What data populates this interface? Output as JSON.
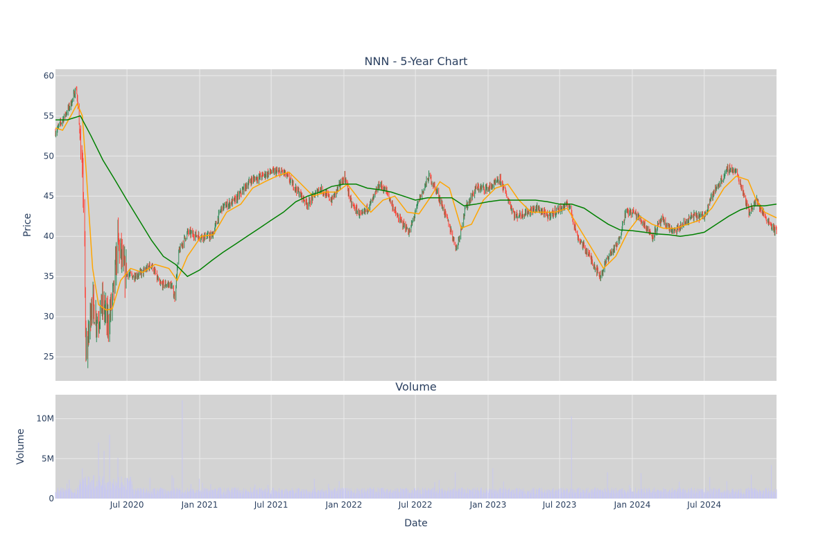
{
  "colors": {
    "plot_bg": "#d3d3d3",
    "grid": "#ebebeb",
    "increasing": "#2e8b57",
    "decreasing": "#ff4136",
    "ma_short": "#ffa500",
    "ma_long": "#008000",
    "volume": "#c8c8f0",
    "text": "#2a3f5f"
  },
  "chart_data": [
    {
      "type": "candlestick",
      "title": "NNN - 5-Year Chart",
      "xlabel": "",
      "ylabel": "Price",
      "xlim": [
        "2020-01-02",
        "2024-12-31"
      ],
      "ylim": [
        22,
        60.8
      ],
      "yticks": [
        25,
        30,
        35,
        40,
        45,
        50,
        55,
        60
      ],
      "grid": true,
      "close_path": [
        [
          "2020-01-02",
          53.0
        ],
        [
          "2020-01-20",
          54.5
        ],
        [
          "2020-02-10",
          56.5
        ],
        [
          "2020-02-24",
          58.5
        ],
        [
          "2020-03-05",
          52.0
        ],
        [
          "2020-03-12",
          46.0
        ],
        [
          "2020-03-16",
          38.0
        ],
        [
          "2020-03-18",
          27.0
        ],
        [
          "2020-03-23",
          26.0
        ],
        [
          "2020-04-02",
          32.0
        ],
        [
          "2020-04-16",
          29.5
        ],
        [
          "2020-05-01",
          31.5
        ],
        [
          "2020-05-14",
          29.0
        ],
        [
          "2020-05-28",
          33.0
        ],
        [
          "2020-06-08",
          39.5
        ],
        [
          "2020-06-25",
          35.5
        ],
        [
          "2020-07-15",
          35.0
        ],
        [
          "2020-08-10",
          35.5
        ],
        [
          "2020-09-01",
          36.5
        ],
        [
          "2020-09-22",
          34.0
        ],
        [
          "2020-10-20",
          34.0
        ],
        [
          "2020-10-30",
          32.5
        ],
        [
          "2020-11-09",
          38.0
        ],
        [
          "2020-12-01",
          40.5
        ],
        [
          "2021-01-01",
          40.0
        ],
        [
          "2021-02-01",
          40.0
        ],
        [
          "2021-02-25",
          43.5
        ],
        [
          "2021-04-01",
          44.5
        ],
        [
          "2021-05-10",
          47.0
        ],
        [
          "2021-06-07",
          47.5
        ],
        [
          "2021-07-01",
          48.0
        ],
        [
          "2021-08-01",
          48.0
        ],
        [
          "2021-09-01",
          46.0
        ],
        [
          "2021-10-01",
          44.0
        ],
        [
          "2021-11-01",
          46.0
        ],
        [
          "2021-12-01",
          44.5
        ],
        [
          "2022-01-03",
          47.5
        ],
        [
          "2022-01-20",
          44.0
        ],
        [
          "2022-02-15",
          42.5
        ],
        [
          "2022-03-15",
          44.5
        ],
        [
          "2022-04-01",
          46.5
        ],
        [
          "2022-04-20",
          45.5
        ],
        [
          "2022-05-15",
          42.5
        ],
        [
          "2022-06-16",
          40.5
        ],
        [
          "2022-07-10",
          44.5
        ],
        [
          "2022-08-05",
          47.5
        ],
        [
          "2022-08-25",
          45.5
        ],
        [
          "2022-09-20",
          42.0
        ],
        [
          "2022-10-13",
          38.5
        ],
        [
          "2022-11-05",
          43.5
        ],
        [
          "2022-12-01",
          46.0
        ],
        [
          "2023-01-03",
          46.0
        ],
        [
          "2023-02-01",
          47.0
        ],
        [
          "2023-03-10",
          42.5
        ],
        [
          "2023-04-10",
          43.0
        ],
        [
          "2023-05-05",
          43.5
        ],
        [
          "2023-06-01",
          42.5
        ],
        [
          "2023-07-05",
          43.5
        ],
        [
          "2023-07-25",
          44.0
        ],
        [
          "2023-08-15",
          40.0
        ],
        [
          "2023-09-15",
          37.5
        ],
        [
          "2023-10-12",
          35.0
        ],
        [
          "2023-11-01",
          37.5
        ],
        [
          "2023-11-25",
          39.0
        ],
        [
          "2023-12-15",
          43.0
        ],
        [
          "2024-01-05",
          43.0
        ],
        [
          "2024-02-01",
          41.5
        ],
        [
          "2024-02-20",
          40.0
        ],
        [
          "2024-03-15",
          42.0
        ],
        [
          "2024-04-15",
          40.5
        ],
        [
          "2024-05-10",
          41.5
        ],
        [
          "2024-06-01",
          42.5
        ],
        [
          "2024-07-01",
          42.5
        ],
        [
          "2024-07-15",
          44.5
        ],
        [
          "2024-08-01",
          46.0
        ],
        [
          "2024-09-01",
          48.5
        ],
        [
          "2024-09-20",
          48.0
        ],
        [
          "2024-10-08",
          45.5
        ],
        [
          "2024-10-22",
          43.0
        ],
        [
          "2024-11-10",
          44.5
        ],
        [
          "2024-12-01",
          42.5
        ],
        [
          "2024-12-31",
          40.5
        ]
      ],
      "ma_short": [
        [
          "2020-01-02",
          53.5
        ],
        [
          "2020-01-20",
          53.2
        ],
        [
          "2020-02-10",
          55.0
        ],
        [
          "2020-02-26",
          56.5
        ],
        [
          "2020-03-10",
          55.0
        ],
        [
          "2020-03-20",
          48.0
        ],
        [
          "2020-04-05",
          36.0
        ],
        [
          "2020-04-20",
          31.5
        ],
        [
          "2020-05-10",
          30.8
        ],
        [
          "2020-05-25",
          31.0
        ],
        [
          "2020-06-15",
          34.5
        ],
        [
          "2020-07-10",
          36.0
        ],
        [
          "2020-08-10",
          35.5
        ],
        [
          "2020-09-10",
          36.5
        ],
        [
          "2020-10-15",
          36.0
        ],
        [
          "2020-11-05",
          34.5
        ],
        [
          "2020-12-01",
          37.5
        ],
        [
          "2021-01-05",
          40.0
        ],
        [
          "2021-02-05",
          40.2
        ],
        [
          "2021-03-10",
          43.0
        ],
        [
          "2021-04-15",
          44.0
        ],
        [
          "2021-05-15",
          46.0
        ],
        [
          "2021-06-15",
          46.8
        ],
        [
          "2021-07-15",
          47.5
        ],
        [
          "2021-08-15",
          48.0
        ],
        [
          "2021-09-15",
          46.5
        ],
        [
          "2021-10-15",
          45.0
        ],
        [
          "2021-11-15",
          45.5
        ],
        [
          "2021-12-15",
          45.5
        ],
        [
          "2022-01-10",
          46.5
        ],
        [
          "2022-02-10",
          44.5
        ],
        [
          "2022-03-10",
          43.0
        ],
        [
          "2022-04-10",
          44.5
        ],
        [
          "2022-05-10",
          45.0
        ],
        [
          "2022-06-10",
          43.0
        ],
        [
          "2022-07-10",
          42.8
        ],
        [
          "2022-08-10",
          45.0
        ],
        [
          "2022-09-01",
          46.8
        ],
        [
          "2022-09-25",
          46.0
        ],
        [
          "2022-10-25",
          41.0
        ],
        [
          "2022-11-20",
          41.5
        ],
        [
          "2022-12-20",
          44.5
        ],
        [
          "2023-01-20",
          46.0
        ],
        [
          "2023-02-20",
          46.5
        ],
        [
          "2023-03-20",
          44.5
        ],
        [
          "2023-04-20",
          43.0
        ],
        [
          "2023-05-20",
          43.0
        ],
        [
          "2023-06-20",
          43.0
        ],
        [
          "2023-07-20",
          43.5
        ],
        [
          "2023-08-20",
          41.0
        ],
        [
          "2023-09-20",
          38.5
        ],
        [
          "2023-10-20",
          36.0
        ],
        [
          "2023-11-20",
          37.5
        ],
        [
          "2023-12-20",
          40.5
        ],
        [
          "2024-01-20",
          42.5
        ],
        [
          "2024-02-20",
          41.5
        ],
        [
          "2024-03-20",
          41.0
        ],
        [
          "2024-04-20",
          41.0
        ],
        [
          "2024-05-20",
          41.5
        ],
        [
          "2024-06-20",
          42.0
        ],
        [
          "2024-07-20",
          43.5
        ],
        [
          "2024-08-20",
          46.0
        ],
        [
          "2024-09-20",
          47.5
        ],
        [
          "2024-10-20",
          47.0
        ],
        [
          "2024-11-10",
          44.5
        ],
        [
          "2024-12-01",
          43.0
        ],
        [
          "2024-12-31",
          42.3
        ]
      ],
      "ma_long": [
        [
          "2020-01-02",
          54.5
        ],
        [
          "2020-02-01",
          54.5
        ],
        [
          "2020-03-05",
          55.0
        ],
        [
          "2020-04-01",
          52.5
        ],
        [
          "2020-05-01",
          49.5
        ],
        [
          "2020-06-01",
          47.0
        ],
        [
          "2020-07-01",
          44.5
        ],
        [
          "2020-08-01",
          42.0
        ],
        [
          "2020-09-01",
          39.5
        ],
        [
          "2020-10-01",
          37.5
        ],
        [
          "2020-11-01",
          36.5
        ],
        [
          "2020-12-01",
          35.0
        ],
        [
          "2021-01-01",
          35.8
        ],
        [
          "2021-02-01",
          37.0
        ],
        [
          "2021-03-01",
          38.0
        ],
        [
          "2021-04-01",
          39.0
        ],
        [
          "2021-05-01",
          40.0
        ],
        [
          "2021-06-01",
          41.0
        ],
        [
          "2021-07-01",
          42.0
        ],
        [
          "2021-08-01",
          43.0
        ],
        [
          "2021-09-01",
          44.3
        ],
        [
          "2021-10-01",
          45.0
        ],
        [
          "2021-11-01",
          45.5
        ],
        [
          "2021-12-01",
          46.2
        ],
        [
          "2022-01-01",
          46.5
        ],
        [
          "2022-02-01",
          46.5
        ],
        [
          "2022-03-01",
          46.0
        ],
        [
          "2022-04-01",
          45.8
        ],
        [
          "2022-05-01",
          45.5
        ],
        [
          "2022-06-01",
          45.0
        ],
        [
          "2022-07-01",
          44.5
        ],
        [
          "2022-08-01",
          44.8
        ],
        [
          "2022-09-01",
          44.8
        ],
        [
          "2022-10-01",
          44.8
        ],
        [
          "2022-11-01",
          43.8
        ],
        [
          "2022-12-01",
          44.0
        ],
        [
          "2023-01-01",
          44.3
        ],
        [
          "2023-02-01",
          44.5
        ],
        [
          "2023-03-01",
          44.5
        ],
        [
          "2023-04-01",
          44.5
        ],
        [
          "2023-05-01",
          44.5
        ],
        [
          "2023-06-01",
          44.3
        ],
        [
          "2023-07-01",
          44.0
        ],
        [
          "2023-08-01",
          44.0
        ],
        [
          "2023-09-01",
          43.5
        ],
        [
          "2023-10-01",
          42.5
        ],
        [
          "2023-11-01",
          41.5
        ],
        [
          "2023-12-01",
          40.8
        ],
        [
          "2024-01-01",
          40.7
        ],
        [
          "2024-02-01",
          40.5
        ],
        [
          "2024-03-01",
          40.3
        ],
        [
          "2024-04-01",
          40.2
        ],
        [
          "2024-05-01",
          40.0
        ],
        [
          "2024-06-01",
          40.2
        ],
        [
          "2024-07-01",
          40.5
        ],
        [
          "2024-08-01",
          41.5
        ],
        [
          "2024-09-01",
          42.5
        ],
        [
          "2024-10-01",
          43.3
        ],
        [
          "2024-11-01",
          43.8
        ],
        [
          "2024-12-01",
          43.8
        ],
        [
          "2024-12-31",
          44.0
        ]
      ]
    },
    {
      "type": "bar",
      "title": "Volume",
      "xlabel": "Date",
      "ylabel": "Volume",
      "xlim": [
        "2020-01-02",
        "2024-12-31"
      ],
      "ylim": [
        0,
        13000000
      ],
      "yticks": [
        0,
        5000000,
        10000000
      ],
      "ytick_labels": [
        "0",
        "5M",
        "10M"
      ],
      "xticks": [
        "2020-07-01",
        "2021-01-01",
        "2021-07-01",
        "2022-01-01",
        "2022-07-01",
        "2023-01-01",
        "2023-07-01",
        "2024-01-01",
        "2024-07-01"
      ],
      "xtick_labels": [
        "Jul 2020",
        "Jan 2021",
        "Jul 2021",
        "Jan 2022",
        "Jul 2022",
        "Jan 2023",
        "Jul 2023",
        "Jan 2024",
        "Jul 2024"
      ],
      "grid": true,
      "spikes": [
        [
          "2020-03-12",
          3800000
        ],
        [
          "2020-03-20",
          2800000
        ],
        [
          "2020-04-21",
          7000000
        ],
        [
          "2020-05-05",
          6000000
        ],
        [
          "2020-05-19",
          8000000
        ],
        [
          "2020-11-20",
          12300000
        ],
        [
          "2020-10-25",
          2900000
        ],
        [
          "2023-07-31",
          10300000
        ],
        [
          "2022-10-10",
          3300000
        ],
        [
          "2023-11-01",
          3300000
        ],
        [
          "2024-10-30",
          3000000
        ],
        [
          "2024-12-20",
          4200000
        ],
        [
          "2023-01-15",
          3800000
        ],
        [
          "2024-01-25",
          3200000
        ],
        [
          "2024-07-15",
          2700000
        ]
      ]
    }
  ]
}
